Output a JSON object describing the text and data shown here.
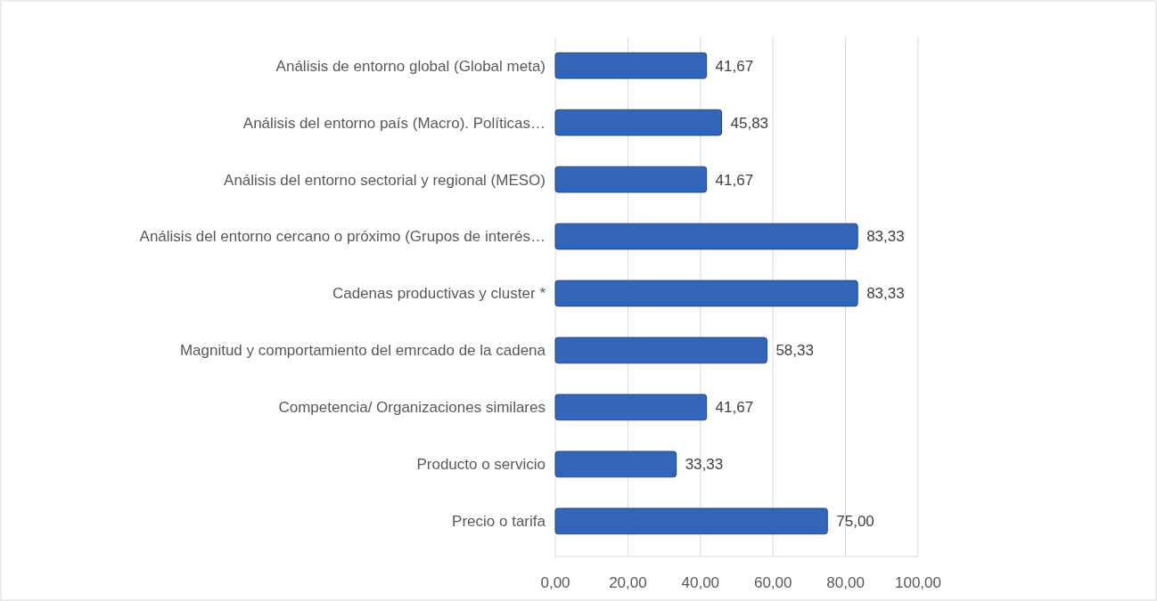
{
  "chart_data": {
    "type": "bar",
    "orientation": "horizontal",
    "categories": [
      "Análisis de entorno global (Global meta)",
      "Análisis del entorno país (Macro). Políticas…",
      "Análisis del entorno sectorial y regional (MESO)",
      "Análisis del entorno cercano o próximo (Grupos de interés…",
      "Cadenas productivas y cluster *",
      "Magnitud y comportamiento del emrcado de la cadena",
      "Competencia/ Organizaciones similares",
      "Producto o servicio",
      "Precio o tarifa"
    ],
    "values": [
      41.67,
      45.83,
      41.67,
      83.33,
      83.33,
      58.33,
      41.67,
      33.33,
      75.0
    ],
    "value_labels": [
      "41,67",
      "45,83",
      "41,67",
      "83,33",
      "83,33",
      "58,33",
      "41,67",
      "33,33",
      "75,00"
    ],
    "color": "#3366bb",
    "xlim": [
      0,
      100
    ],
    "xticks": [
      {
        "value": 0,
        "label": "0,00"
      },
      {
        "value": 20,
        "label": "20,00"
      },
      {
        "value": 40,
        "label": "40,00"
      },
      {
        "value": 60,
        "label": "60,00"
      },
      {
        "value": 80,
        "label": "80,00"
      },
      {
        "value": 100,
        "label": "100,00"
      }
    ],
    "grid": "x"
  }
}
